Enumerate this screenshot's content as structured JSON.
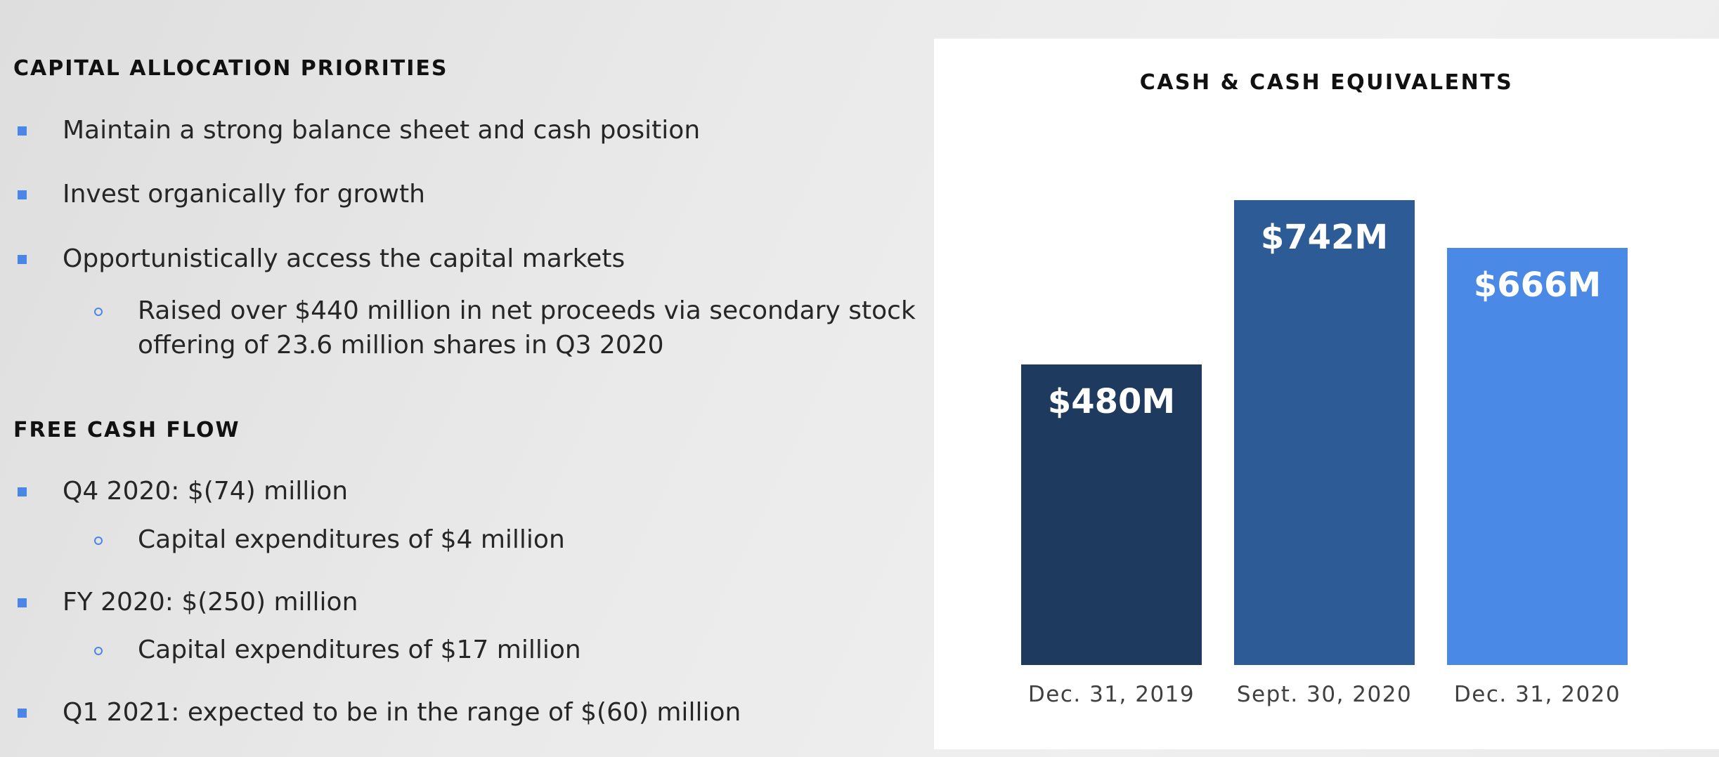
{
  "capital_allocation": {
    "heading": "CAPITAL ALLOCATION PRIORITIES",
    "items": [
      {
        "text": "Maintain a strong balance sheet and cash position"
      },
      {
        "text": "Invest organically for growth"
      },
      {
        "text": "Opportunistically access the capital markets",
        "subitems": [
          {
            "lines": [
              "Raised over $440 million in net proceeds via secondary stock",
              "offering of 23.6 million shares in Q3 2020"
            ]
          }
        ]
      }
    ]
  },
  "free_cash_flow": {
    "heading": "FREE CASH FLOW",
    "items": [
      {
        "text": "Q4 2020: $(74) million",
        "subitems": [
          {
            "text": "Capital expenditures of $4 million"
          }
        ]
      },
      {
        "text": "FY 2020: $(250) million",
        "subitems": [
          {
            "text": "Capital expenditures of $17 million"
          }
        ]
      },
      {
        "text": "Q1 2021: expected to be in the range of $(60) million"
      }
    ]
  },
  "colors": {
    "bullet": "#4a86e8",
    "bar_1": "#1e3a5f",
    "bar_2": "#2c5b96",
    "bar_3": "#4a8ae6"
  },
  "chart_data": {
    "type": "bar",
    "title": "CASH & CASH EQUIVALENTS",
    "categories": [
      "Dec. 31, 2019",
      "Sept. 30, 2020",
      "Dec. 31, 2020"
    ],
    "values": [
      480,
      742,
      666
    ],
    "data_labels": [
      "$480M",
      "$742M",
      "$666M"
    ],
    "unit": "$M",
    "ylim": [
      0,
      742
    ],
    "grid": false,
    "legend": "none",
    "xlabel": "",
    "ylabel": ""
  }
}
